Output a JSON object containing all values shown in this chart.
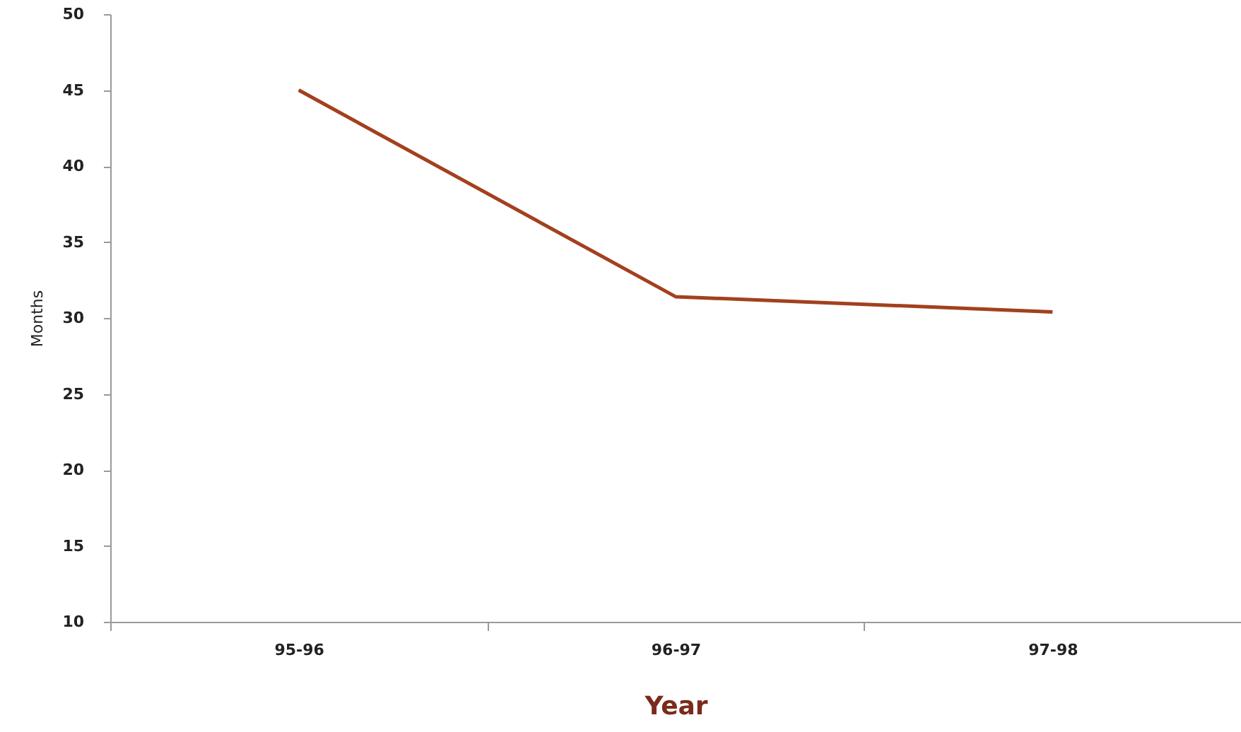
{
  "chart_data": {
    "type": "line",
    "xlabel": "Year",
    "ylabel": "Months",
    "categories": [
      "95-96",
      "96-97",
      "97-98"
    ],
    "series": [
      {
        "color": "#a3401f",
        "values": [
          45,
          31.4,
          30.4
        ]
      }
    ],
    "ylim": [
      10,
      50
    ],
    "yticks": [
      10,
      15,
      20,
      25,
      30,
      35,
      40,
      45,
      50
    ],
    "grid": false,
    "line_style": "solid"
  }
}
